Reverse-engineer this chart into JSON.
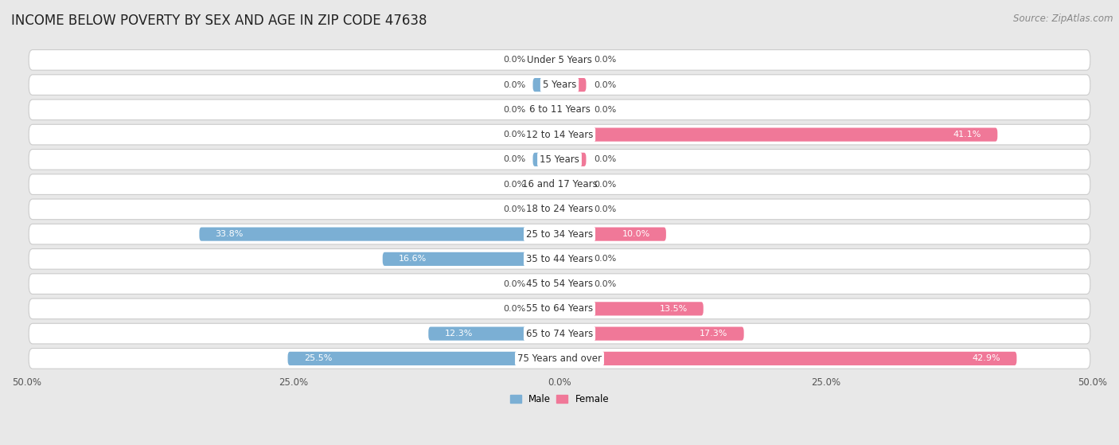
{
  "title": "INCOME BELOW POVERTY BY SEX AND AGE IN ZIP CODE 47638",
  "source": "Source: ZipAtlas.com",
  "categories": [
    "Under 5 Years",
    "5 Years",
    "6 to 11 Years",
    "12 to 14 Years",
    "15 Years",
    "16 and 17 Years",
    "18 to 24 Years",
    "25 to 34 Years",
    "35 to 44 Years",
    "45 to 54 Years",
    "55 to 64 Years",
    "65 to 74 Years",
    "75 Years and over"
  ],
  "male_values": [
    0.0,
    0.0,
    0.0,
    0.0,
    0.0,
    0.0,
    0.0,
    33.8,
    16.6,
    0.0,
    0.0,
    12.3,
    25.5
  ],
  "female_values": [
    0.0,
    0.0,
    0.0,
    41.1,
    0.0,
    0.0,
    0.0,
    10.0,
    0.0,
    0.0,
    13.5,
    17.3,
    42.9
  ],
  "male_color": "#7bafd4",
  "female_color": "#f07898",
  "male_label": "Male",
  "female_label": "Female",
  "xlim": 50.0,
  "background_color": "#e8e8e8",
  "row_bg_color": "#ffffff",
  "row_border_color": "#cccccc",
  "title_fontsize": 12,
  "source_fontsize": 8.5,
  "label_fontsize": 8.5,
  "bar_label_fontsize": 8,
  "cat_label_fontsize": 8.5
}
